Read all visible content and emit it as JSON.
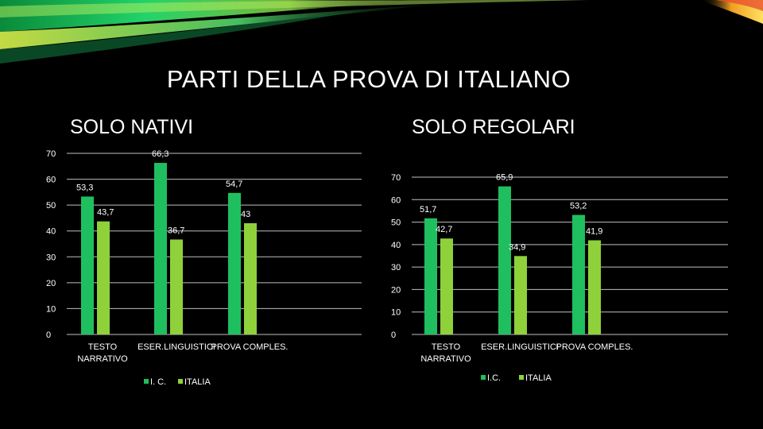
{
  "title": "PARTI DELLA PROVA DI ITALIANO",
  "colors": {
    "ic": "#1fbf5f",
    "italia": "#8fd13a",
    "grid": "#bfbfbf",
    "text": "#ffffff"
  },
  "chart_data": [
    {
      "type": "bar",
      "title": "SOLO NATIVI",
      "categories": [
        [
          "TESTO",
          "NARRATIVO"
        ],
        [
          "ESER.LINGUISTICI"
        ],
        [
          "PROVA COMPLES."
        ]
      ],
      "series": [
        {
          "name": "I. C.",
          "values": [
            53.3,
            66.3,
            54.7
          ],
          "labels": [
            "53,3",
            "66,3",
            "54,7"
          ]
        },
        {
          "name": "ITALIA",
          "values": [
            43.7,
            36.7,
            43
          ],
          "labels": [
            "43,7",
            "36,7",
            "43"
          ]
        }
      ],
      "yticks": [
        0,
        10,
        20,
        30,
        40,
        50,
        60,
        70
      ],
      "ylim": [
        0,
        70
      ],
      "grid": true,
      "legend": "bottom"
    },
    {
      "type": "bar",
      "title": "SOLO REGOLARI",
      "categories": [
        [
          "TESTO",
          "NARRATIVO"
        ],
        [
          "ESER.LINGUISTICI"
        ],
        [
          "PROVA COMPLES."
        ]
      ],
      "series": [
        {
          "name": "I.C.",
          "values": [
            51.7,
            65.9,
            53.2
          ],
          "labels": [
            "51,7",
            "65,9",
            "53,2"
          ]
        },
        {
          "name": "ITALIA",
          "values": [
            42.7,
            34.9,
            41.9
          ],
          "labels": [
            "42,7",
            "34,9",
            "41,9"
          ]
        }
      ],
      "yticks": [
        0,
        10,
        20,
        30,
        40,
        50,
        60,
        70
      ],
      "ylim": [
        0,
        70
      ],
      "grid": true,
      "legend": "bottom"
    }
  ]
}
